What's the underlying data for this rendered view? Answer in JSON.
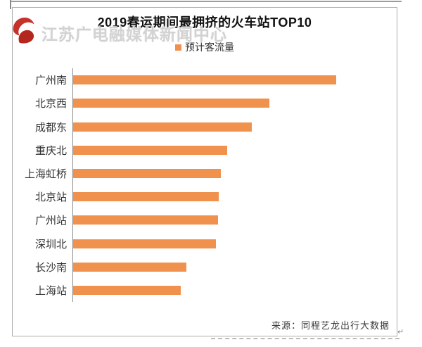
{
  "watermark": {
    "text": "江苏广电融媒体新闻中心",
    "logo_icon": "jsbc-red-swirl-logo",
    "logo_color": "#C5312B"
  },
  "chart": {
    "title": "2019春运期间最拥挤的火车站TOP10",
    "legend_label": "预计客流量",
    "source": "来源：同程艺龙出行大数据",
    "return_mark": "↵"
  },
  "colors": {
    "bar": "#F0924E",
    "frame_border": "#ACACAC",
    "axis": "#8A8A8A",
    "title_text": "#111111",
    "label_text": "#333333",
    "watermark_text": "#C0C0C0"
  },
  "chart_data": {
    "type": "bar",
    "orientation": "horizontal",
    "title": "2019春运期间最拥挤的火车站TOP10",
    "legend": [
      "预计客流量"
    ],
    "legend_position": "top-center",
    "categories": [
      "广州南",
      "北京西",
      "成都东",
      "重庆北",
      "上海虹桥",
      "北京站",
      "广州站",
      "深圳北",
      "长沙南",
      "上海站"
    ],
    "values": [
      100,
      74.6,
      67.9,
      58.6,
      56.1,
      55.3,
      55.1,
      54.3,
      43.0,
      40.9
    ],
    "value_scale": "relative length, longest bar = 100 (no numeric axis labels shown in image)",
    "xlim": [
      0,
      100
    ],
    "grid": false,
    "value_labels_shown": false,
    "source": "来源：同程艺龙出行大数据"
  }
}
